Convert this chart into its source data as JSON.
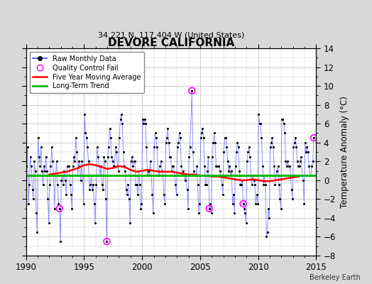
{
  "title": "DEVORE CALIFORNIA",
  "subtitle": "34.221 N, 117.404 W (United States)",
  "ylabel": "Temperature Anomaly (°C)",
  "credit": "Berkeley Earth",
  "xlim": [
    1990,
    2015
  ],
  "ylim": [
    -8,
    14
  ],
  "yticks": [
    -8,
    -6,
    -4,
    -2,
    0,
    2,
    4,
    6,
    8,
    10,
    12,
    14
  ],
  "xticks": [
    1990,
    1995,
    2000,
    2005,
    2010,
    2015
  ],
  "fig_bg_color": "#d8d8d8",
  "plot_bg": "#ffffff",
  "raw_color": "#4444ff",
  "raw_dot_color": "#000000",
  "ma_color": "#ff0000",
  "trend_color": "#00bb00",
  "qc_color": "#ff00ff",
  "legend_labels": [
    "Raw Monthly Data",
    "Quality Control Fail",
    "Five Year Moving Average",
    "Long-Term Trend"
  ],
  "raw_data": [
    [
      1990.0417,
      1.5
    ],
    [
      1990.125,
      3.5
    ],
    [
      1990.2083,
      -2.5
    ],
    [
      1990.2917,
      -0.5
    ],
    [
      1990.375,
      2.5
    ],
    [
      1990.4583,
      1.5
    ],
    [
      1990.5417,
      -1.0
    ],
    [
      1990.625,
      -2.0
    ],
    [
      1990.7083,
      2.0
    ],
    [
      1990.7917,
      1.0
    ],
    [
      1990.875,
      -3.5
    ],
    [
      1990.9583,
      -5.5
    ],
    [
      1991.0417,
      4.5
    ],
    [
      1991.125,
      2.5
    ],
    [
      1991.2083,
      1.5
    ],
    [
      1991.2917,
      3.5
    ],
    [
      1991.375,
      1.0
    ],
    [
      1991.4583,
      -0.5
    ],
    [
      1991.5417,
      1.5
    ],
    [
      1991.625,
      1.0
    ],
    [
      1991.7083,
      2.5
    ],
    [
      1991.7917,
      1.0
    ],
    [
      1991.875,
      -2.0
    ],
    [
      1991.9583,
      -4.5
    ],
    [
      1992.0417,
      -0.5
    ],
    [
      1992.125,
      1.5
    ],
    [
      1992.2083,
      3.5
    ],
    [
      1992.2917,
      2.0
    ],
    [
      1992.375,
      0.5
    ],
    [
      1992.4583,
      -3.0
    ],
    [
      1992.5417,
      0.5
    ],
    [
      1992.625,
      2.0
    ],
    [
      1992.7083,
      -0.5
    ],
    [
      1992.7917,
      -2.5
    ],
    [
      1992.875,
      -3.0
    ],
    [
      1992.9583,
      -6.5
    ],
    [
      1993.0417,
      0.0
    ],
    [
      1993.125,
      0.5
    ],
    [
      1993.2083,
      -0.5
    ],
    [
      1993.2917,
      1.0
    ],
    [
      1993.375,
      0.0
    ],
    [
      1993.4583,
      -1.5
    ],
    [
      1993.5417,
      1.5
    ],
    [
      1993.625,
      1.5
    ],
    [
      1993.7083,
      1.5
    ],
    [
      1993.7917,
      -0.5
    ],
    [
      1993.875,
      -1.5
    ],
    [
      1993.9583,
      -3.0
    ],
    [
      1994.0417,
      1.5
    ],
    [
      1994.125,
      2.5
    ],
    [
      1994.2083,
      2.0
    ],
    [
      1994.2917,
      4.5
    ],
    [
      1994.375,
      3.0
    ],
    [
      1994.4583,
      0.5
    ],
    [
      1994.5417,
      2.0
    ],
    [
      1994.625,
      1.5
    ],
    [
      1994.7083,
      0.0
    ],
    [
      1994.7917,
      2.0
    ],
    [
      1994.875,
      0.5
    ],
    [
      1994.9583,
      -2.5
    ],
    [
      1995.0417,
      7.0
    ],
    [
      1995.125,
      5.0
    ],
    [
      1995.2083,
      4.5
    ],
    [
      1995.2917,
      3.5
    ],
    [
      1995.375,
      2.0
    ],
    [
      1995.4583,
      -1.0
    ],
    [
      1995.5417,
      -0.5
    ],
    [
      1995.625,
      0.5
    ],
    [
      1995.7083,
      -1.0
    ],
    [
      1995.7917,
      -0.5
    ],
    [
      1995.875,
      -2.5
    ],
    [
      1995.9583,
      -4.5
    ],
    [
      1996.0417,
      -0.5
    ],
    [
      1996.125,
      3.5
    ],
    [
      1996.2083,
      2.5
    ],
    [
      1996.2917,
      1.5
    ],
    [
      1996.375,
      0.5
    ],
    [
      1996.4583,
      1.5
    ],
    [
      1996.5417,
      -0.5
    ],
    [
      1996.625,
      -1.0
    ],
    [
      1996.7083,
      2.5
    ],
    [
      1996.7917,
      2.0
    ],
    [
      1996.875,
      -2.0
    ],
    [
      1996.9583,
      -6.5
    ],
    [
      1997.0417,
      2.5
    ],
    [
      1997.125,
      3.5
    ],
    [
      1997.2083,
      5.5
    ],
    [
      1997.2917,
      4.5
    ],
    [
      1997.375,
      2.5
    ],
    [
      1997.4583,
      2.0
    ],
    [
      1997.5417,
      1.5
    ],
    [
      1997.625,
      1.5
    ],
    [
      1997.7083,
      3.5
    ],
    [
      1997.7917,
      3.0
    ],
    [
      1997.875,
      1.5
    ],
    [
      1997.9583,
      1.0
    ],
    [
      1998.0417,
      4.5
    ],
    [
      1998.125,
      6.5
    ],
    [
      1998.2083,
      7.0
    ],
    [
      1998.2917,
      6.0
    ],
    [
      1998.375,
      3.0
    ],
    [
      1998.4583,
      1.5
    ],
    [
      1998.5417,
      1.0
    ],
    [
      1998.625,
      -1.0
    ],
    [
      1998.7083,
      -1.5
    ],
    [
      1998.7917,
      -0.5
    ],
    [
      1998.875,
      -2.0
    ],
    [
      1998.9583,
      -4.5
    ],
    [
      1999.0417,
      2.0
    ],
    [
      1999.125,
      2.5
    ],
    [
      1999.2083,
      1.5
    ],
    [
      1999.2917,
      2.0
    ],
    [
      1999.375,
      2.0
    ],
    [
      1999.4583,
      -0.5
    ],
    [
      1999.5417,
      -0.5
    ],
    [
      1999.625,
      -1.5
    ],
    [
      1999.7083,
      1.0
    ],
    [
      1999.7917,
      -0.5
    ],
    [
      1999.875,
      -3.0
    ],
    [
      1999.9583,
      -2.5
    ],
    [
      2000.0417,
      6.5
    ],
    [
      2000.125,
      6.0
    ],
    [
      2000.2083,
      6.5
    ],
    [
      2000.2917,
      6.0
    ],
    [
      2000.375,
      3.5
    ],
    [
      2000.4583,
      0.5
    ],
    [
      2000.5417,
      1.0
    ],
    [
      2000.625,
      0.5
    ],
    [
      2000.7083,
      2.0
    ],
    [
      2000.7917,
      0.5
    ],
    [
      2000.875,
      -1.5
    ],
    [
      2000.9583,
      -3.5
    ],
    [
      2001.0417,
      3.5
    ],
    [
      2001.125,
      5.0
    ],
    [
      2001.2083,
      4.5
    ],
    [
      2001.2917,
      3.5
    ],
    [
      2001.375,
      1.0
    ],
    [
      2001.4583,
      0.5
    ],
    [
      2001.5417,
      1.5
    ],
    [
      2001.625,
      2.0
    ],
    [
      2001.7083,
      1.0
    ],
    [
      2001.7917,
      0.5
    ],
    [
      2001.875,
      -1.5
    ],
    [
      2001.9583,
      -2.5
    ],
    [
      2002.0417,
      4.0
    ],
    [
      2002.125,
      4.5
    ],
    [
      2002.2083,
      5.5
    ],
    [
      2002.2917,
      4.0
    ],
    [
      2002.375,
      2.5
    ],
    [
      2002.4583,
      2.5
    ],
    [
      2002.5417,
      1.0
    ],
    [
      2002.625,
      1.5
    ],
    [
      2002.7083,
      1.5
    ],
    [
      2002.7917,
      0.5
    ],
    [
      2002.875,
      -0.5
    ],
    [
      2002.9583,
      -1.5
    ],
    [
      2003.0417,
      3.5
    ],
    [
      2003.125,
      4.0
    ],
    [
      2003.2083,
      5.0
    ],
    [
      2003.2917,
      4.5
    ],
    [
      2003.375,
      1.5
    ],
    [
      2003.4583,
      0.5
    ],
    [
      2003.5417,
      1.0
    ],
    [
      2003.625,
      0.5
    ],
    [
      2003.7083,
      0.0
    ],
    [
      2003.7917,
      0.5
    ],
    [
      2003.875,
      -1.0
    ],
    [
      2003.9583,
      -3.0
    ],
    [
      2004.0417,
      2.5
    ],
    [
      2004.125,
      3.5
    ],
    [
      2004.2917,
      9.5
    ],
    [
      2004.375,
      3.0
    ],
    [
      2004.4583,
      1.0
    ],
    [
      2004.5417,
      0.5
    ],
    [
      2004.625,
      0.5
    ],
    [
      2004.7083,
      1.5
    ],
    [
      2004.7917,
      -0.5
    ],
    [
      2004.875,
      -3.5
    ],
    [
      2004.9583,
      -2.5
    ],
    [
      2005.0417,
      4.5
    ],
    [
      2005.125,
      5.0
    ],
    [
      2005.2083,
      5.5
    ],
    [
      2005.2917,
      4.5
    ],
    [
      2005.375,
      1.5
    ],
    [
      2005.4583,
      -0.5
    ],
    [
      2005.5417,
      -0.5
    ],
    [
      2005.625,
      1.0
    ],
    [
      2005.7083,
      2.5
    ],
    [
      2005.7917,
      -3.0
    ],
    [
      2005.875,
      -2.5
    ],
    [
      2005.9583,
      -3.5
    ],
    [
      2006.0417,
      2.5
    ],
    [
      2006.125,
      4.0
    ],
    [
      2006.2083,
      5.0
    ],
    [
      2006.2917,
      4.0
    ],
    [
      2006.375,
      1.5
    ],
    [
      2006.4583,
      1.5
    ],
    [
      2006.5417,
      1.5
    ],
    [
      2006.625,
      1.5
    ],
    [
      2006.7083,
      1.0
    ],
    [
      2006.7917,
      0.5
    ],
    [
      2006.875,
      -0.5
    ],
    [
      2006.9583,
      -1.5
    ],
    [
      2007.0417,
      3.0
    ],
    [
      2007.125,
      4.5
    ],
    [
      2007.2083,
      4.5
    ],
    [
      2007.2917,
      3.5
    ],
    [
      2007.375,
      2.0
    ],
    [
      2007.4583,
      1.0
    ],
    [
      2007.5417,
      1.5
    ],
    [
      2007.625,
      0.5
    ],
    [
      2007.7083,
      1.0
    ],
    [
      2007.7917,
      -2.5
    ],
    [
      2007.875,
      -1.5
    ],
    [
      2007.9583,
      -3.5
    ],
    [
      2008.0417,
      1.5
    ],
    [
      2008.125,
      3.0
    ],
    [
      2008.2083,
      4.0
    ],
    [
      2008.2917,
      3.5
    ],
    [
      2008.375,
      1.0
    ],
    [
      2008.4583,
      -0.5
    ],
    [
      2008.5417,
      -0.5
    ],
    [
      2008.625,
      0.0
    ],
    [
      2008.7083,
      -2.5
    ],
    [
      2008.7917,
      -3.0
    ],
    [
      2008.875,
      -3.5
    ],
    [
      2008.9583,
      -4.5
    ],
    [
      2009.0417,
      2.0
    ],
    [
      2009.125,
      3.0
    ],
    [
      2009.2083,
      3.5
    ],
    [
      2009.2917,
      2.5
    ],
    [
      2009.375,
      0.5
    ],
    [
      2009.4583,
      -0.5
    ],
    [
      2009.5417,
      0.5
    ],
    [
      2009.625,
      0.0
    ],
    [
      2009.7083,
      -0.5
    ],
    [
      2009.7917,
      -2.5
    ],
    [
      2009.875,
      -1.5
    ],
    [
      2009.9583,
      -2.5
    ],
    [
      2010.0417,
      7.0
    ],
    [
      2010.125,
      6.0
    ],
    [
      2010.2083,
      6.0
    ],
    [
      2010.2917,
      4.5
    ],
    [
      2010.375,
      1.5
    ],
    [
      2010.4583,
      -0.5
    ],
    [
      2010.5417,
      0.5
    ],
    [
      2010.625,
      -0.5
    ],
    [
      2010.7083,
      -6.0
    ],
    [
      2010.7917,
      -5.5
    ],
    [
      2010.875,
      -3.0
    ],
    [
      2010.9583,
      -4.0
    ],
    [
      2011.0417,
      3.5
    ],
    [
      2011.125,
      4.0
    ],
    [
      2011.2083,
      4.5
    ],
    [
      2011.2917,
      3.5
    ],
    [
      2011.375,
      1.5
    ],
    [
      2011.4583,
      -0.5
    ],
    [
      2011.5417,
      0.5
    ],
    [
      2011.625,
      1.0
    ],
    [
      2011.7083,
      1.5
    ],
    [
      2011.7917,
      -0.5
    ],
    [
      2011.875,
      -2.0
    ],
    [
      2011.9583,
      -3.0
    ],
    [
      2012.0417,
      6.5
    ],
    [
      2012.125,
      6.5
    ],
    [
      2012.2083,
      6.0
    ],
    [
      2012.2917,
      5.0
    ],
    [
      2012.375,
      2.0
    ],
    [
      2012.4583,
      1.5
    ],
    [
      2012.5417,
      2.0
    ],
    [
      2012.625,
      1.5
    ],
    [
      2012.7083,
      1.5
    ],
    [
      2012.7917,
      0.5
    ],
    [
      2012.875,
      -1.0
    ],
    [
      2012.9583,
      -2.0
    ],
    [
      2013.0417,
      3.5
    ],
    [
      2013.125,
      4.0
    ],
    [
      2013.2083,
      4.5
    ],
    [
      2013.2917,
      3.5
    ],
    [
      2013.375,
      2.0
    ],
    [
      2013.4583,
      1.5
    ],
    [
      2013.5417,
      1.5
    ],
    [
      2013.625,
      2.0
    ],
    [
      2013.7083,
      2.5
    ],
    [
      2013.7917,
      0.5
    ],
    [
      2013.875,
      0.0
    ],
    [
      2013.9583,
      -2.5
    ],
    [
      2014.0417,
      4.0
    ],
    [
      2014.125,
      3.0
    ],
    [
      2014.2083,
      3.5
    ],
    [
      2014.2917,
      3.0
    ],
    [
      2014.375,
      1.5
    ],
    [
      2014.4583,
      0.5
    ],
    [
      2014.5417,
      0.5
    ],
    [
      2014.625,
      1.5
    ],
    [
      2014.7083,
      2.0
    ],
    [
      2014.7917,
      4.5
    ]
  ],
  "qc_points": [
    [
      1992.875,
      -3.0
    ],
    [
      1996.9583,
      -6.5
    ],
    [
      2004.2917,
      9.5
    ],
    [
      2005.7917,
      -3.0
    ],
    [
      2008.7083,
      -2.5
    ],
    [
      2014.7917,
      4.5
    ]
  ],
  "moving_avg": [
    [
      1992.0,
      0.6
    ],
    [
      1992.5,
      0.7
    ],
    [
      1993.0,
      0.8
    ],
    [
      1993.5,
      0.9
    ],
    [
      1994.0,
      1.1
    ],
    [
      1994.5,
      1.3
    ],
    [
      1995.0,
      1.6
    ],
    [
      1995.5,
      1.7
    ],
    [
      1996.0,
      1.6
    ],
    [
      1996.5,
      1.4
    ],
    [
      1997.0,
      1.2
    ],
    [
      1997.5,
      1.3
    ],
    [
      1998.0,
      1.5
    ],
    [
      1998.5,
      1.4
    ],
    [
      1999.0,
      1.1
    ],
    [
      1999.5,
      0.9
    ],
    [
      2000.0,
      1.0
    ],
    [
      2000.5,
      1.1
    ],
    [
      2001.0,
      1.0
    ],
    [
      2001.5,
      0.9
    ],
    [
      2002.0,
      0.9
    ],
    [
      2002.5,
      0.9
    ],
    [
      2003.0,
      0.8
    ],
    [
      2003.5,
      0.7
    ],
    [
      2004.0,
      0.6
    ],
    [
      2004.5,
      0.6
    ],
    [
      2005.0,
      0.5
    ],
    [
      2005.5,
      0.5
    ],
    [
      2006.0,
      0.4
    ],
    [
      2006.5,
      0.4
    ],
    [
      2007.0,
      0.3
    ],
    [
      2007.5,
      0.2
    ],
    [
      2008.0,
      0.1
    ],
    [
      2008.5,
      0.0
    ],
    [
      2009.0,
      0.0
    ],
    [
      2009.5,
      0.1
    ],
    [
      2010.0,
      0.0
    ],
    [
      2010.5,
      -0.1
    ],
    [
      2011.0,
      -0.1
    ],
    [
      2011.5,
      0.0
    ],
    [
      2012.0,
      0.1
    ],
    [
      2012.5,
      0.2
    ],
    [
      2013.0,
      0.3
    ],
    [
      2013.5,
      0.4
    ]
  ],
  "trend_x": [
    1990,
    2015
  ],
  "trend_y": [
    0.5,
    0.5
  ]
}
